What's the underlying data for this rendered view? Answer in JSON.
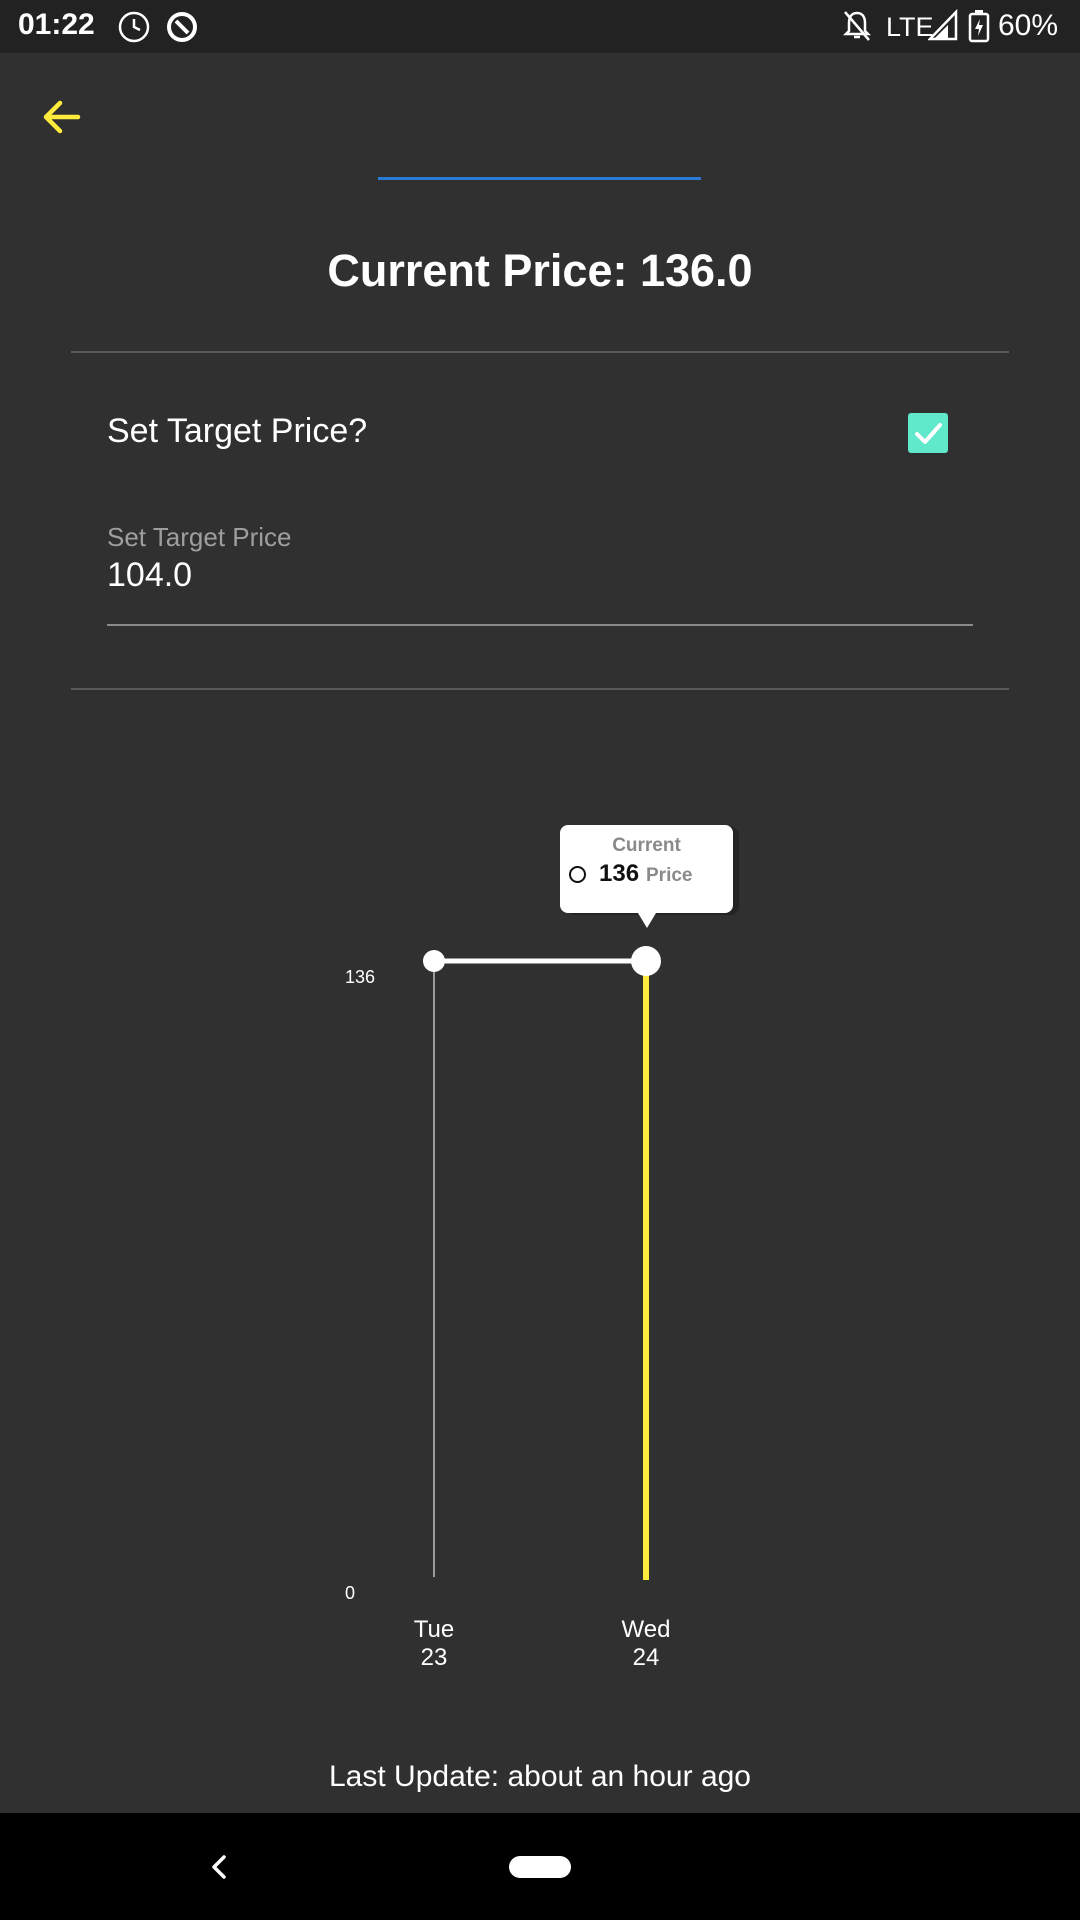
{
  "status_bar": {
    "time": "01:22",
    "network": "LTE",
    "battery": "60%"
  },
  "header": {
    "title": "Current Price: 136.0"
  },
  "target": {
    "toggle_label": "Set Target Price?",
    "toggle_checked": true,
    "field_label": "Set Target Price",
    "field_value": "104.0"
  },
  "chart_data": {
    "type": "line",
    "categories": [
      "Tue 23",
      "Wed 24"
    ],
    "x_tick_labels": [
      [
        "Tue",
        "23"
      ],
      [
        "Wed",
        "24"
      ]
    ],
    "series": [
      {
        "name": "Price",
        "values": [
          136,
          136
        ],
        "color": "#ffffff"
      }
    ],
    "y_tick_labels": [
      "136",
      "0"
    ],
    "ylim": [
      0,
      136
    ],
    "selected_index": 1,
    "highlight_color": "#ffeb3b",
    "tooltip": {
      "title": "Current",
      "value": "136",
      "series": "Price"
    }
  },
  "footer": {
    "last_update": "Last Update: about an hour ago"
  },
  "colors": {
    "accent": "#ffeb3b",
    "checkbox": "#5fe8c9",
    "tab_indicator": "#2a7ad6"
  }
}
